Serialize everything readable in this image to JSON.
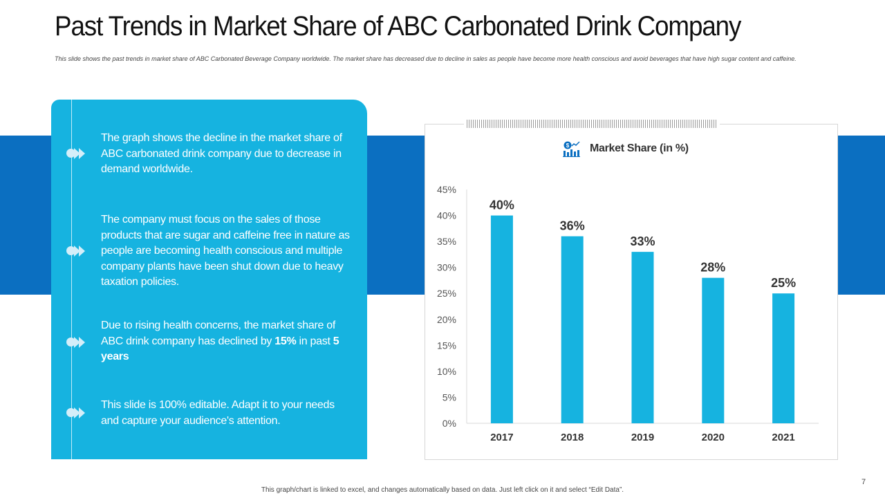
{
  "header": {
    "title": "Past Trends in Market Share of ABC Carbonated Drink Company",
    "subtitle": "This slide shows the past trends in market share of ABC Carbonated Beverage Company worldwide. The market share has decreased due to decline in sales as people have become more health conscious and avoid beverages that have high sugar content and caffeine."
  },
  "panel": {
    "points": [
      {
        "text": "The graph shows the decline in the market share of ABC carbonated drink company due to decrease in demand worldwide."
      },
      {
        "text": "The company must focus on the sales of those products that are sugar and caffeine free in nature as people are becoming health conscious and multiple company plants have been shut down due to heavy taxation policies."
      },
      {
        "text_a": "Due to rising health concerns, the market share of ABC drink company has declined by ",
        "bold_a": "15%",
        "text_b": " in past ",
        "bold_b": "5 years"
      },
      {
        "text": "This slide is 100% editable. Adapt it to your needs and capture your audience's attention."
      }
    ]
  },
  "chart_data": {
    "type": "bar",
    "title": "Market Share (in %)",
    "categories": [
      "2017",
      "2018",
      "2019",
      "2020",
      "2021"
    ],
    "values": [
      40,
      36,
      33,
      28,
      25
    ],
    "data_labels": [
      "40%",
      "36%",
      "33%",
      "28%",
      "25%"
    ],
    "yticks": [
      "0%",
      "5%",
      "10%",
      "15%",
      "20%",
      "25%",
      "30%",
      "35%",
      "40%",
      "45%"
    ],
    "ylim": [
      0,
      45
    ],
    "xlabel": "",
    "ylabel": "",
    "bar_color": "#16b3e0",
    "grid": false
  },
  "footer": {
    "note": "This graph/chart is linked to excel, and changes automatically  based on data. Just left click  on it and select  “Edit Data”.",
    "page_number": "7"
  },
  "colors": {
    "band": "#0b6fc1",
    "panel": "#16b3e0",
    "bar": "#16b3e0"
  },
  "icons": {
    "legend": "chart-analytics-icon",
    "bullet": "double-chevron-icon"
  }
}
